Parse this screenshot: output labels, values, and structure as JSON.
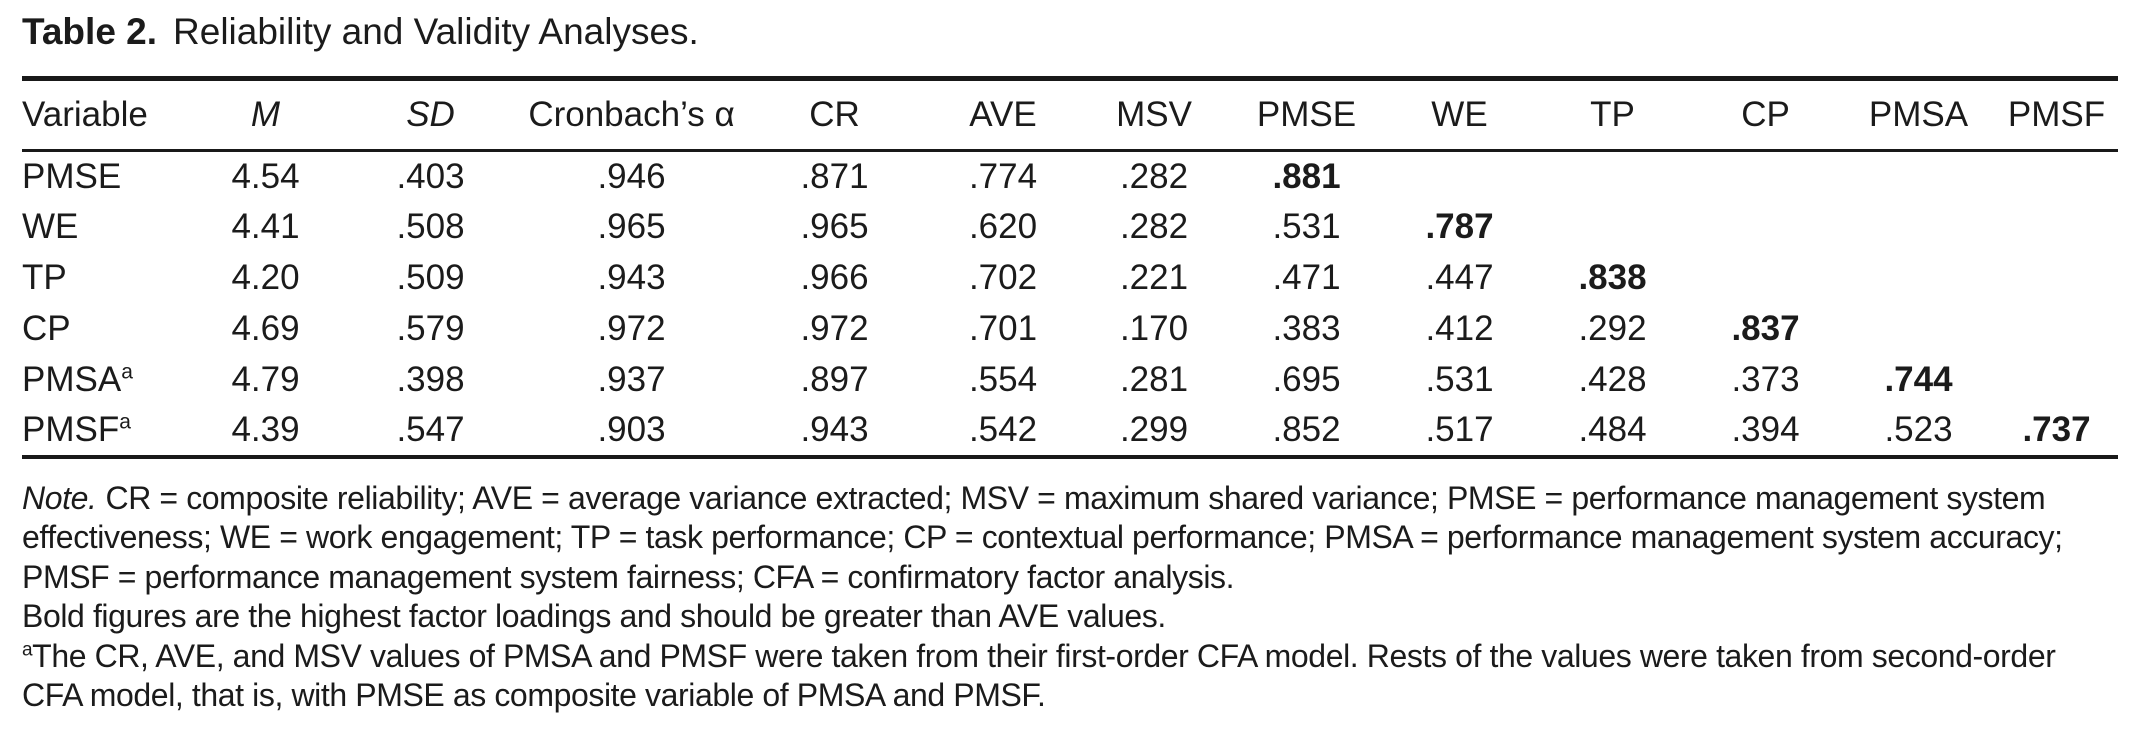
{
  "title": {
    "label": "Table 2.",
    "text": "Reliability and Validity Analyses."
  },
  "table": {
    "columns": [
      {
        "label": "Variable",
        "italic": false,
        "align": "left"
      },
      {
        "label": "M",
        "italic": true
      },
      {
        "label": "SD",
        "italic": true
      },
      {
        "label": "Cronbach’s α",
        "italic": false
      },
      {
        "label": "CR",
        "italic": false
      },
      {
        "label": "AVE",
        "italic": false
      },
      {
        "label": "MSV",
        "italic": false
      },
      {
        "label": "PMSE",
        "italic": false
      },
      {
        "label": "WE",
        "italic": false
      },
      {
        "label": "TP",
        "italic": false
      },
      {
        "label": "CP",
        "italic": false
      },
      {
        "label": "PMSA",
        "italic": false
      },
      {
        "label": "PMSF",
        "italic": false
      }
    ],
    "rows": [
      {
        "variable": "PMSE",
        "superscript": "",
        "cells": [
          "4.54",
          ".403",
          ".946",
          ".871",
          ".774",
          ".282",
          {
            "text": ".881",
            "bold": true
          },
          "",
          "",
          "",
          "",
          ""
        ]
      },
      {
        "variable": "WE",
        "superscript": "",
        "cells": [
          "4.41",
          ".508",
          ".965",
          ".965",
          ".620",
          ".282",
          ".531",
          {
            "text": ".787",
            "bold": true
          },
          "",
          "",
          "",
          ""
        ]
      },
      {
        "variable": "TP",
        "superscript": "",
        "cells": [
          "4.20",
          ".509",
          ".943",
          ".966",
          ".702",
          ".221",
          ".471",
          ".447",
          {
            "text": ".838",
            "bold": true
          },
          "",
          "",
          ""
        ]
      },
      {
        "variable": "CP",
        "superscript": "",
        "cells": [
          "4.69",
          ".579",
          ".972",
          ".972",
          ".701",
          ".170",
          ".383",
          ".412",
          ".292",
          {
            "text": ".837",
            "bold": true
          },
          "",
          ""
        ]
      },
      {
        "variable": "PMSA",
        "superscript": "a",
        "cells": [
          "4.79",
          ".398",
          ".937",
          ".897",
          ".554",
          ".281",
          ".695",
          ".531",
          ".428",
          ".373",
          {
            "text": ".744",
            "bold": true
          },
          ""
        ]
      },
      {
        "variable": "PMSF",
        "superscript": "a",
        "cells": [
          "4.39",
          ".547",
          ".903",
          ".943",
          ".542",
          ".299",
          ".852",
          ".517",
          ".484",
          ".394",
          ".523",
          {
            "text": ".737",
            "bold": true
          }
        ]
      }
    ]
  },
  "note": {
    "label": "Note.",
    "line1": "CR = composite reliability; AVE = average variance extracted; MSV = maximum shared variance; PMSE = performance management system",
    "line2": "effectiveness; WE = work engagement; TP = task performance; CP = contextual performance; PMSA = performance management system accuracy;",
    "line3": "PMSF = performance management system fairness; CFA = confirmatory factor analysis.",
    "line4": "Bold figures are the highest factor loadings and should be greater than AVE values.",
    "line5_sup": "a",
    "line5": "The CR, AVE, and MSV values of PMSA and PMSF were taken from their first-order CFA model. Rests of the values were taken from second-order",
    "line6": "CFA model, that is, with PMSE as composite variable of PMSA and PMSF.",
    "text_color": "#1b1b1b",
    "rule_color": "#191919"
  }
}
